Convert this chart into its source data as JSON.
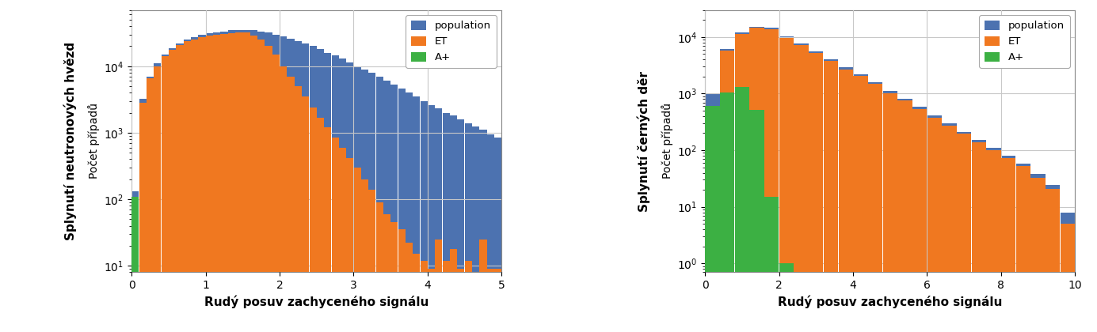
{
  "plot1": {
    "title_y": "Splynutí neutronových hvězd",
    "xlabel": "Rudý posuv zachyceného signálu",
    "ylabel": "Počet případů",
    "xmax": 5.0,
    "bin_width": 0.1,
    "ylim": [
      8,
      70000
    ],
    "color_pop": "#4c72b0",
    "color_et": "#f07820",
    "color_aplus": "#3cb043",
    "bins": [
      0.05,
      0.15,
      0.25,
      0.35,
      0.45,
      0.55,
      0.65,
      0.75,
      0.85,
      0.95,
      1.05,
      1.15,
      1.25,
      1.35,
      1.45,
      1.55,
      1.65,
      1.75,
      1.85,
      1.95,
      2.05,
      2.15,
      2.25,
      2.35,
      2.45,
      2.55,
      2.65,
      2.75,
      2.85,
      2.95,
      3.05,
      3.15,
      3.25,
      3.35,
      3.45,
      3.55,
      3.65,
      3.75,
      3.85,
      3.95,
      4.05,
      4.15,
      4.25,
      4.35,
      4.45,
      4.55,
      4.65,
      4.75,
      4.85,
      4.95
    ],
    "population": [
      130,
      3200,
      7000,
      11000,
      15000,
      18500,
      22000,
      25000,
      27500,
      29500,
      31000,
      32500,
      33500,
      34500,
      35000,
      35000,
      34500,
      33500,
      32000,
      30000,
      28000,
      26000,
      24000,
      22000,
      20000,
      18000,
      16000,
      14500,
      13000,
      11500,
      10000,
      9000,
      8000,
      7000,
      6100,
      5300,
      4600,
      4000,
      3500,
      3000,
      2600,
      2300,
      2000,
      1800,
      1600,
      1400,
      1250,
      1100,
      950,
      850
    ],
    "et": [
      100,
      2800,
      6500,
      10000,
      14000,
      17500,
      21000,
      23500,
      25500,
      27000,
      28500,
      29500,
      30500,
      31500,
      32000,
      32000,
      29000,
      25000,
      20000,
      15000,
      10000,
      7000,
      5000,
      3500,
      2400,
      1700,
      1200,
      850,
      600,
      420,
      300,
      200,
      140,
      90,
      60,
      45,
      35,
      22,
      15,
      12,
      9,
      25,
      12,
      18,
      9,
      12,
      8,
      25,
      9,
      9
    ],
    "aplus": [
      110,
      0,
      0,
      0,
      0,
      0,
      0,
      0,
      0,
      0,
      0,
      0,
      0,
      0,
      0,
      0,
      0,
      0,
      0,
      0,
      0,
      0,
      0,
      0,
      0,
      0,
      0,
      0,
      0,
      0,
      0,
      0,
      0,
      0,
      0,
      0,
      0,
      0,
      0,
      0,
      0,
      0,
      0,
      0,
      0,
      0,
      0,
      0,
      0,
      0
    ]
  },
  "plot2": {
    "title_y": "Splynutí černých děr",
    "xlabel": "Rudý posuv zachyceného signálu",
    "ylabel": "Počet případů",
    "xmax": 10.0,
    "bin_width": 0.4,
    "ylim": [
      0.7,
      30000
    ],
    "color_pop": "#4c72b0",
    "color_et": "#f07820",
    "color_aplus": "#3cb043",
    "bins": [
      0.2,
      0.6,
      1.0,
      1.4,
      1.8,
      2.2,
      2.6,
      3.0,
      3.4,
      3.8,
      4.2,
      4.6,
      5.0,
      5.4,
      5.8,
      6.2,
      6.6,
      7.0,
      7.4,
      7.8,
      8.2,
      8.6,
      9.0,
      9.4,
      9.8
    ],
    "population": [
      1000,
      6200,
      12000,
      15000,
      14500,
      10200,
      7600,
      5600,
      4100,
      2900,
      2200,
      1600,
      1100,
      800,
      580,
      410,
      295,
      210,
      152,
      110,
      80,
      58,
      38,
      24,
      8
    ],
    "et": [
      550,
      5800,
      11200,
      14500,
      13500,
      9500,
      7200,
      5200,
      3800,
      2700,
      2050,
      1500,
      1020,
      750,
      540,
      380,
      272,
      195,
      140,
      100,
      72,
      52,
      33,
      21,
      5
    ],
    "aplus": [
      600,
      1050,
      1300,
      520,
      15,
      1,
      0,
      0,
      0,
      0,
      0,
      0,
      0,
      0,
      0,
      0,
      0,
      0,
      0,
      0,
      0,
      0,
      0,
      0,
      0
    ]
  },
  "legend_labels": [
    "population",
    "ET",
    "A+"
  ],
  "background_color": "#ffffff",
  "grid_color": "#c8c8c8"
}
